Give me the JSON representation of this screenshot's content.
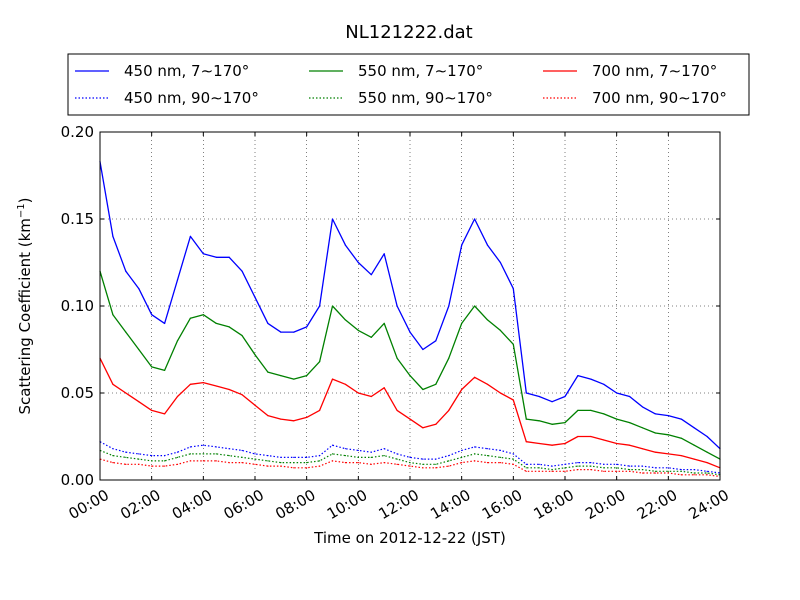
{
  "chart_data": {
    "type": "line",
    "title": "NL121222.dat",
    "xlabel": "Time on 2012-12-22 (JST)",
    "ylabel": "Scattering Coefficient (km",
    "ylabel_sup": "−1",
    "ylabel_close": ")",
    "xlim": [
      0,
      24
    ],
    "ylim": [
      0,
      0.2
    ],
    "x_ticks": [
      0,
      2,
      4,
      6,
      8,
      10,
      12,
      14,
      16,
      18,
      20,
      22,
      24
    ],
    "x_tick_labels": [
      "00:00",
      "02:00",
      "04:00",
      "06:00",
      "08:00",
      "10:00",
      "12:00",
      "14:00",
      "16:00",
      "18:00",
      "20:00",
      "22:00",
      "24:00"
    ],
    "y_ticks": [
      0,
      0.05,
      0.1,
      0.15,
      0.2
    ],
    "y_tick_labels": [
      "0.00",
      "0.05",
      "0.10",
      "0.15",
      "0.20"
    ],
    "grid": true,
    "legend_position": "top",
    "x": [
      0,
      0.5,
      1,
      1.5,
      2,
      2.5,
      3,
      3.5,
      4,
      4.5,
      5,
      5.5,
      6,
      6.5,
      7,
      7.5,
      8,
      8.5,
      9,
      9.5,
      10,
      10.5,
      11,
      11.5,
      12,
      12.5,
      13,
      13.5,
      14,
      14.5,
      15,
      15.5,
      16,
      16.5,
      17,
      17.5,
      18,
      18.5,
      19,
      19.5,
      20,
      20.5,
      21,
      21.5,
      22,
      22.5,
      23,
      23.5,
      24
    ],
    "series": [
      {
        "name": "450 nm, 7∼170°",
        "color": "#0000ff",
        "style": "solid",
        "values": [
          0.183,
          0.14,
          0.12,
          0.11,
          0.095,
          0.09,
          0.115,
          0.14,
          0.13,
          0.128,
          0.128,
          0.12,
          0.105,
          0.09,
          0.085,
          0.085,
          0.088,
          0.1,
          0.15,
          0.135,
          0.125,
          0.118,
          0.13,
          0.1,
          0.085,
          0.075,
          0.08,
          0.1,
          0.135,
          0.15,
          0.135,
          0.125,
          0.11,
          0.05,
          0.048,
          0.045,
          0.048,
          0.06,
          0.058,
          0.055,
          0.05,
          0.048,
          0.042,
          0.038,
          0.037,
          0.035,
          0.03,
          0.025,
          0.018
        ]
      },
      {
        "name": "550 nm, 7∼170°",
        "color": "#008000",
        "style": "solid",
        "values": [
          0.12,
          0.095,
          0.085,
          0.075,
          0.065,
          0.063,
          0.08,
          0.093,
          0.095,
          0.09,
          0.088,
          0.083,
          0.072,
          0.062,
          0.06,
          0.058,
          0.06,
          0.068,
          0.1,
          0.092,
          0.086,
          0.082,
          0.09,
          0.07,
          0.06,
          0.052,
          0.055,
          0.07,
          0.09,
          0.1,
          0.092,
          0.086,
          0.078,
          0.035,
          0.034,
          0.032,
          0.033,
          0.04,
          0.04,
          0.038,
          0.035,
          0.033,
          0.03,
          0.027,
          0.026,
          0.024,
          0.02,
          0.016,
          0.012
        ]
      },
      {
        "name": "700 nm, 7∼170°",
        "color": "#ff0000",
        "style": "solid",
        "values": [
          0.07,
          0.055,
          0.05,
          0.045,
          0.04,
          0.038,
          0.048,
          0.055,
          0.056,
          0.054,
          0.052,
          0.049,
          0.043,
          0.037,
          0.035,
          0.034,
          0.036,
          0.04,
          0.058,
          0.055,
          0.05,
          0.048,
          0.053,
          0.04,
          0.035,
          0.03,
          0.032,
          0.04,
          0.052,
          0.059,
          0.055,
          0.05,
          0.046,
          0.022,
          0.021,
          0.02,
          0.021,
          0.025,
          0.025,
          0.023,
          0.021,
          0.02,
          0.018,
          0.016,
          0.015,
          0.014,
          0.012,
          0.01,
          0.007
        ]
      },
      {
        "name": "450 nm, 90∼170°",
        "color": "#0000ff",
        "style": "dotted",
        "values": [
          0.022,
          0.018,
          0.016,
          0.015,
          0.014,
          0.014,
          0.016,
          0.019,
          0.02,
          0.019,
          0.018,
          0.017,
          0.015,
          0.014,
          0.013,
          0.013,
          0.013,
          0.014,
          0.02,
          0.018,
          0.017,
          0.016,
          0.018,
          0.015,
          0.013,
          0.012,
          0.012,
          0.014,
          0.017,
          0.019,
          0.018,
          0.017,
          0.015,
          0.009,
          0.009,
          0.008,
          0.009,
          0.01,
          0.01,
          0.009,
          0.009,
          0.008,
          0.008,
          0.007,
          0.007,
          0.006,
          0.006,
          0.005,
          0.004
        ]
      },
      {
        "name": "550 nm, 90∼170°",
        "color": "#008000",
        "style": "dotted",
        "values": [
          0.017,
          0.014,
          0.013,
          0.012,
          0.011,
          0.011,
          0.013,
          0.015,
          0.015,
          0.015,
          0.014,
          0.013,
          0.012,
          0.011,
          0.01,
          0.01,
          0.01,
          0.011,
          0.015,
          0.014,
          0.013,
          0.013,
          0.014,
          0.012,
          0.01,
          0.009,
          0.009,
          0.011,
          0.013,
          0.015,
          0.014,
          0.013,
          0.012,
          0.007,
          0.007,
          0.006,
          0.007,
          0.008,
          0.008,
          0.007,
          0.007,
          0.006,
          0.006,
          0.005,
          0.005,
          0.005,
          0.004,
          0.004,
          0.003
        ]
      },
      {
        "name": "700 nm, 90∼170°",
        "color": "#ff0000",
        "style": "dotted",
        "values": [
          0.012,
          0.01,
          0.009,
          0.009,
          0.008,
          0.008,
          0.009,
          0.011,
          0.011,
          0.011,
          0.01,
          0.01,
          0.009,
          0.008,
          0.008,
          0.007,
          0.007,
          0.008,
          0.011,
          0.01,
          0.01,
          0.009,
          0.01,
          0.009,
          0.008,
          0.007,
          0.007,
          0.008,
          0.01,
          0.011,
          0.01,
          0.01,
          0.009,
          0.005,
          0.005,
          0.005,
          0.005,
          0.006,
          0.006,
          0.005,
          0.005,
          0.005,
          0.004,
          0.004,
          0.004,
          0.003,
          0.003,
          0.003,
          0.002
        ]
      }
    ],
    "legend_order": [
      0,
      1,
      2,
      3,
      4,
      5
    ]
  }
}
